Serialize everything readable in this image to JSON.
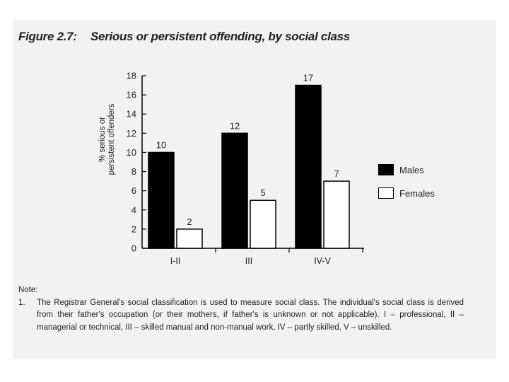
{
  "figure": {
    "number": "Figure 2.7:",
    "title": "Serious or persistent offending, by social class"
  },
  "chart_data": {
    "type": "bar",
    "title": "Serious or persistent offending, by social class",
    "categories": [
      "I-II",
      "III",
      "IV-V"
    ],
    "series": [
      {
        "name": "Males",
        "values": [
          10,
          12,
          17
        ],
        "color": "#000000"
      },
      {
        "name": "Females",
        "values": [
          2,
          5,
          7
        ],
        "color": "#ffffff"
      }
    ],
    "xlabel": "",
    "ylabel": [
      "% serious or",
      "persistent offenders"
    ],
    "ylim": [
      0,
      18
    ],
    "yticks": [
      0,
      2,
      4,
      6,
      8,
      10,
      12,
      14,
      16,
      18
    ],
    "data_labels": true,
    "grid": false,
    "legend": "right"
  },
  "note": {
    "heading": "Note:",
    "number": "1.",
    "text": "The Registrar General's social classification is used to measure social class. The individual's social class is derived from their father's occupation (or their mothers, if father's is unknown or not applicable). I – professional, II – managerial or technical, III – skilled manual and non-manual work, IV – partly skilled, V – unskilled."
  }
}
